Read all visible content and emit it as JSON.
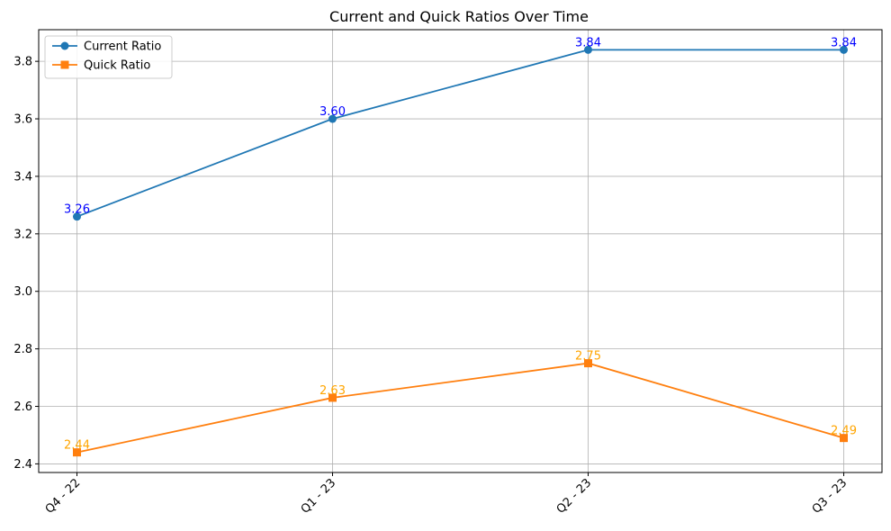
{
  "chart_data": {
    "type": "line",
    "title": "Current and Quick Ratios Over Time",
    "xlabel": "",
    "ylabel": "",
    "categories": [
      "Q4 - 22",
      "Q1 - 23",
      "Q2 - 23",
      "Q3 - 23"
    ],
    "ylim": [
      2.37,
      3.91
    ],
    "yticks": [
      2.4,
      2.6,
      2.8,
      3.0,
      3.2,
      3.4,
      3.6,
      3.8
    ],
    "ytick_labels": [
      "2.4",
      "2.6",
      "2.8",
      "3.0",
      "3.2",
      "3.4",
      "3.6",
      "3.8"
    ],
    "grid": true,
    "legend_position": "upper-left",
    "series": [
      {
        "name": "Current Ratio",
        "values": [
          3.26,
          3.6,
          3.84,
          3.84
        ],
        "labels": [
          "3.26",
          "3.60",
          "3.84",
          "3.84"
        ],
        "color": "#1f77b4",
        "label_color": "#0000ff",
        "marker": "circle"
      },
      {
        "name": "Quick Ratio",
        "values": [
          2.44,
          2.63,
          2.75,
          2.49
        ],
        "labels": [
          "2.44",
          "2.63",
          "2.75",
          "2.49"
        ],
        "color": "#ff7f0e",
        "label_color": "#ffa500",
        "marker": "square"
      }
    ]
  }
}
